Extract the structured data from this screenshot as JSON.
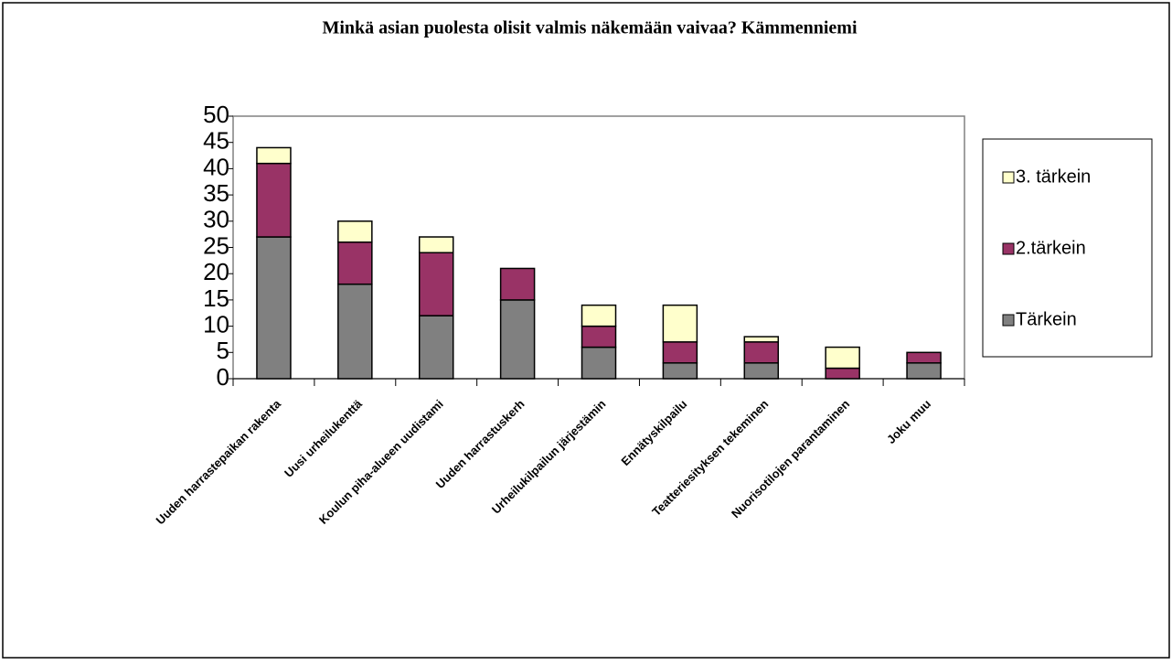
{
  "chart_data": {
    "type": "stacked_bar",
    "title": "Minkä asian puolesta olisit valmis näkemään vaivaa? Kämmenniemi",
    "categories": [
      "Uuden harrastepaikan rakenta",
      "Uusi urheilukenttä",
      "Koulun piha-alueen uudistami",
      "Uuden harrastuskerh",
      "Urheilukilpailun järjestämin",
      "Ennätyskilpailu",
      "Teatteriesityksen tekeminen",
      "Nuorisotilojen parantaminen",
      "Joku muu"
    ],
    "series": [
      {
        "name": "Tärkein",
        "color": "#808080",
        "values": [
          27,
          18,
          12,
          15,
          6,
          3,
          3,
          0,
          3
        ]
      },
      {
        "name": "2.tärkein",
        "color": "#993366",
        "values": [
          14,
          8,
          12,
          6,
          4,
          4,
          4,
          2,
          2
        ]
      },
      {
        "name": "3. tärkein",
        "color": "#ffffcc",
        "values": [
          3,
          4,
          3,
          0,
          4,
          7,
          1,
          4,
          0
        ]
      }
    ],
    "ylim": [
      0,
      50
    ],
    "yticks": [
      0,
      5,
      10,
      15,
      20,
      25,
      30,
      35,
      40,
      45,
      50
    ],
    "grid": false,
    "legend": "right"
  }
}
